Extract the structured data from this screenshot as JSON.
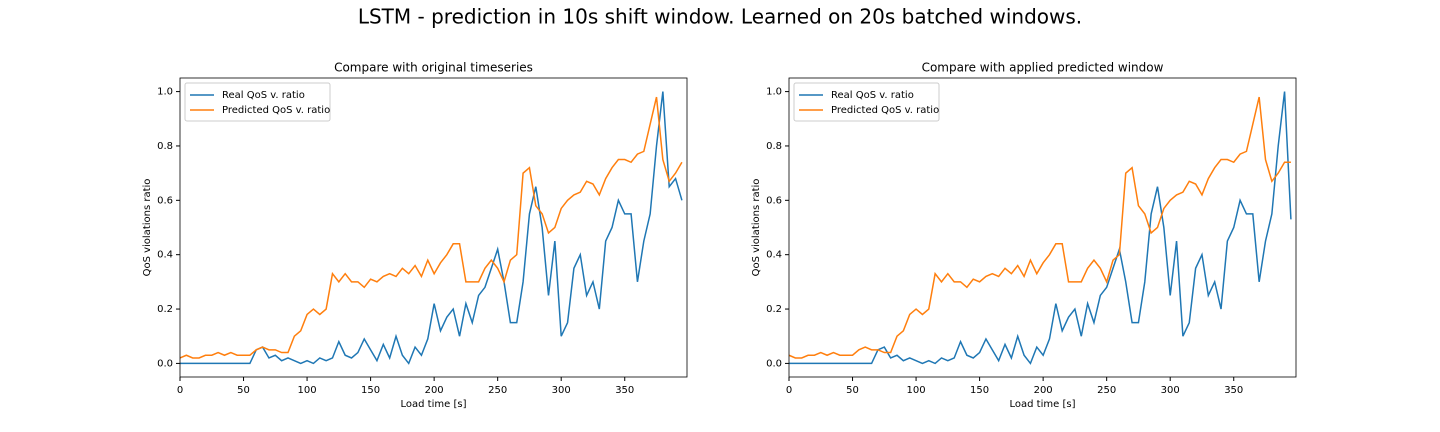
{
  "title": "LSTM - prediction in 10s shift window. Learned on 20s batched windows.",
  "chart_data": [
    {
      "type": "line",
      "title": "Compare with original timeseries",
      "x_label": "Load time [s]",
      "y_label": "QoS violations ratio",
      "xlim": [
        0,
        399
      ],
      "ylim": [
        -0.05,
        1.05
      ],
      "xticks": [
        0,
        50,
        100,
        150,
        200,
        250,
        300,
        350
      ],
      "yticks": [
        {
          "value": 0,
          "label": "0.0"
        },
        {
          "value": 0.2,
          "label": "0.2"
        },
        {
          "value": 0.4,
          "label": "0.4"
        },
        {
          "value": 0.6,
          "label": "0.6"
        },
        {
          "value": 0.8,
          "label": "0.8"
        },
        {
          "value": 1,
          "label": "1.0"
        }
      ],
      "legend": "upper left",
      "x": [
        0,
        5,
        10,
        15,
        20,
        25,
        30,
        35,
        40,
        45,
        50,
        55,
        60,
        65,
        70,
        75,
        80,
        85,
        90,
        95,
        100,
        105,
        110,
        115,
        120,
        125,
        130,
        135,
        140,
        145,
        150,
        155,
        160,
        165,
        170,
        175,
        180,
        185,
        190,
        195,
        200,
        205,
        210,
        215,
        220,
        225,
        230,
        235,
        240,
        245,
        250,
        255,
        260,
        265,
        270,
        275,
        280,
        285,
        290,
        295,
        300,
        305,
        310,
        315,
        320,
        325,
        330,
        335,
        340,
        345,
        350,
        355,
        360,
        365,
        370,
        375,
        380,
        385,
        390,
        395
      ],
      "series": [
        {
          "name": "Real QoS v. ratio",
          "color": "#1f77b4",
          "values": [
            0,
            0,
            0,
            0,
            0,
            0,
            0,
            0,
            0,
            0,
            0,
            0,
            0.05,
            0.06,
            0.02,
            0.03,
            0.01,
            0.02,
            0.01,
            0.0,
            0.01,
            0.0,
            0.02,
            0.01,
            0.02,
            0.08,
            0.03,
            0.02,
            0.04,
            0.09,
            0.05,
            0.01,
            0.07,
            0.02,
            0.1,
            0.03,
            0.0,
            0.06,
            0.03,
            0.09,
            0.22,
            0.12,
            0.17,
            0.2,
            0.1,
            0.22,
            0.15,
            0.25,
            0.28,
            0.35,
            0.42,
            0.3,
            0.15,
            0.15,
            0.3,
            0.55,
            0.65,
            0.5,
            0.25,
            0.45,
            0.1,
            0.15,
            0.35,
            0.4,
            0.25,
            0.3,
            0.2,
            0.45,
            0.5,
            0.6,
            0.55,
            0.55,
            0.3,
            0.45,
            0.55,
            0.8,
            1.0,
            0.65,
            0.68,
            0.6
          ]
        },
        {
          "name": "Predicted QoS v. ratio",
          "color": "#ff7f0e",
          "values": [
            0.02,
            0.03,
            0.02,
            0.02,
            0.03,
            0.03,
            0.04,
            0.03,
            0.04,
            0.03,
            0.03,
            0.03,
            0.05,
            0.06,
            0.05,
            0.05,
            0.04,
            0.04,
            0.1,
            0.12,
            0.18,
            0.2,
            0.18,
            0.2,
            0.33,
            0.3,
            0.33,
            0.3,
            0.3,
            0.28,
            0.31,
            0.3,
            0.32,
            0.33,
            0.32,
            0.35,
            0.33,
            0.36,
            0.32,
            0.38,
            0.33,
            0.37,
            0.4,
            0.44,
            0.44,
            0.3,
            0.3,
            0.3,
            0.35,
            0.38,
            0.35,
            0.3,
            0.38,
            0.4,
            0.7,
            0.72,
            0.58,
            0.55,
            0.48,
            0.5,
            0.57,
            0.6,
            0.62,
            0.63,
            0.67,
            0.66,
            0.62,
            0.68,
            0.72,
            0.75,
            0.75,
            0.74,
            0.77,
            0.78,
            0.88,
            0.98,
            0.75,
            0.67,
            0.7,
            0.74
          ]
        }
      ]
    },
    {
      "type": "line",
      "title": "Compare with applied predicted window",
      "x_label": "Load time [s]",
      "y_label": "QoS violations ratio",
      "xlim": [
        0,
        399
      ],
      "ylim": [
        -0.05,
        1.05
      ],
      "xticks": [
        0,
        50,
        100,
        150,
        200,
        250,
        300,
        350
      ],
      "yticks": [
        {
          "value": 0,
          "label": "0.0"
        },
        {
          "value": 0.2,
          "label": "0.2"
        },
        {
          "value": 0.4,
          "label": "0.4"
        },
        {
          "value": 0.6,
          "label": "0.6"
        },
        {
          "value": 0.8,
          "label": "0.8"
        },
        {
          "value": 1,
          "label": "1.0"
        }
      ],
      "legend": "upper left",
      "x": [
        0,
        5,
        10,
        15,
        20,
        25,
        30,
        35,
        40,
        45,
        50,
        55,
        60,
        65,
        70,
        75,
        80,
        85,
        90,
        95,
        100,
        105,
        110,
        115,
        120,
        125,
        130,
        135,
        140,
        145,
        150,
        155,
        160,
        165,
        170,
        175,
        180,
        185,
        190,
        195,
        200,
        205,
        210,
        215,
        220,
        225,
        230,
        235,
        240,
        245,
        250,
        255,
        260,
        265,
        270,
        275,
        280,
        285,
        290,
        295,
        300,
        305,
        310,
        315,
        320,
        325,
        330,
        335,
        340,
        345,
        350,
        355,
        360,
        365,
        370,
        375,
        380,
        385,
        390,
        395
      ],
      "series": [
        {
          "name": "Real QoS v. ratio",
          "color": "#1f77b4",
          "values": [
            0,
            0,
            0,
            0,
            0,
            0,
            0,
            0,
            0,
            0,
            0,
            0,
            0,
            0,
            0.05,
            0.06,
            0.02,
            0.03,
            0.01,
            0.02,
            0.01,
            0.0,
            0.01,
            0.0,
            0.02,
            0.01,
            0.02,
            0.08,
            0.03,
            0.02,
            0.04,
            0.09,
            0.05,
            0.01,
            0.07,
            0.02,
            0.1,
            0.03,
            0.0,
            0.06,
            0.03,
            0.09,
            0.22,
            0.12,
            0.17,
            0.2,
            0.1,
            0.22,
            0.15,
            0.25,
            0.28,
            0.35,
            0.42,
            0.3,
            0.15,
            0.15,
            0.3,
            0.55,
            0.65,
            0.5,
            0.25,
            0.45,
            0.1,
            0.15,
            0.35,
            0.4,
            0.25,
            0.3,
            0.2,
            0.45,
            0.5,
            0.6,
            0.55,
            0.55,
            0.3,
            0.45,
            0.55,
            0.8,
            1.0,
            0.53
          ]
        },
        {
          "name": "Predicted QoS v. ratio",
          "color": "#ff7f0e",
          "values": [
            0.03,
            0.02,
            0.02,
            0.03,
            0.03,
            0.04,
            0.03,
            0.04,
            0.03,
            0.03,
            0.03,
            0.05,
            0.06,
            0.05,
            0.05,
            0.04,
            0.04,
            0.1,
            0.12,
            0.18,
            0.2,
            0.18,
            0.2,
            0.33,
            0.3,
            0.33,
            0.3,
            0.3,
            0.28,
            0.31,
            0.3,
            0.32,
            0.33,
            0.32,
            0.35,
            0.33,
            0.36,
            0.32,
            0.38,
            0.33,
            0.37,
            0.4,
            0.44,
            0.44,
            0.3,
            0.3,
            0.3,
            0.35,
            0.38,
            0.35,
            0.3,
            0.38,
            0.4,
            0.7,
            0.72,
            0.58,
            0.55,
            0.48,
            0.5,
            0.57,
            0.6,
            0.62,
            0.63,
            0.67,
            0.66,
            0.62,
            0.68,
            0.72,
            0.75,
            0.75,
            0.74,
            0.77,
            0.78,
            0.88,
            0.98,
            0.75,
            0.67,
            0.7,
            0.74,
            0.74
          ]
        }
      ]
    }
  ]
}
